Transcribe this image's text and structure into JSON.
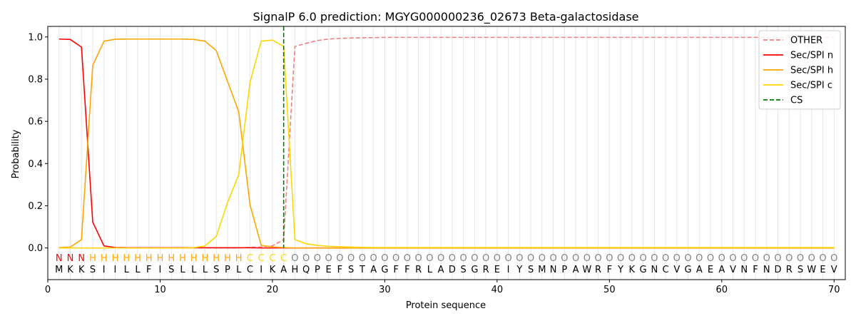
{
  "chart_data": {
    "type": "line",
    "title": "SignalP 6.0 prediction: MGYG000000236_02673 Beta-galactosidase",
    "xlabel": "Protein sequence",
    "ylabel": "Probability",
    "xlim": [
      0,
      71
    ],
    "ylim": [
      -0.15,
      1.05
    ],
    "xticks": [
      0,
      10,
      20,
      30,
      40,
      50,
      60,
      70
    ],
    "yticks": [
      0.0,
      0.2,
      0.4,
      0.6,
      0.8,
      1.0
    ],
    "ytick_labels": [
      "0.0",
      "0.2",
      "0.4",
      "0.6",
      "0.8",
      "1.0"
    ],
    "sequence": "MKKSIILLFISLLLSPLCIKAHQPEFSTAGFFRLADSGREIYSMNPAWRFYKGNCVGAEAVNFNDRSWEV",
    "labels": "NNNHHHHHHHHHHHHHHCCCCOOOOOOOOOOOOOOOOOOOOOOOOOOOOOOOOOOOOOOOOOOOOOOOOO",
    "label_colors": {
      "N": "#ff0000",
      "H": "#ffa500",
      "C": "#ffd700",
      "O": "#808080"
    },
    "legend_position": "top-right",
    "grid": "vertical",
    "series": [
      {
        "name": "OTHER",
        "color": "#f08080",
        "dash": "dashed",
        "values": [
          0.0,
          0.0,
          0.0,
          0.0,
          0.0,
          0.0,
          0.0,
          0.0,
          0.0,
          0.0,
          0.0,
          0.0,
          0.0,
          0.0,
          0.0,
          0.0,
          0.0,
          0.003,
          0.005,
          0.01,
          0.04,
          0.955,
          0.97,
          0.983,
          0.99,
          0.993,
          0.995,
          0.996,
          0.997,
          0.998,
          0.998,
          0.998,
          0.998,
          0.998,
          0.998,
          0.998,
          0.998,
          0.998,
          0.998,
          0.998,
          0.998,
          0.998,
          0.998,
          0.998,
          0.998,
          0.998,
          0.998,
          0.998,
          0.998,
          0.998,
          0.998,
          0.998,
          0.998,
          0.998,
          0.998,
          0.998,
          0.998,
          0.998,
          0.998,
          0.998,
          0.998,
          0.998,
          0.998,
          0.998,
          0.998,
          0.998,
          0.998,
          0.998,
          0.998,
          0.998
        ]
      },
      {
        "name": "Sec/SPI n",
        "color": "#ff0000",
        "dash": "solid",
        "values": [
          0.99,
          0.988,
          0.952,
          0.123,
          0.01,
          0.002,
          0.001,
          0.001,
          0.001,
          0.001,
          0.001,
          0.001,
          0.001,
          0.001,
          0.001,
          0.001,
          0.001,
          0.001,
          0.0,
          0.0,
          0.0,
          0.0,
          0.0,
          0.0,
          0.0,
          0.0,
          0.0,
          0.0,
          0.0,
          0.0,
          0.0,
          0.0,
          0.0,
          0.0,
          0.0,
          0.0,
          0.0,
          0.0,
          0.0,
          0.0,
          0.0,
          0.0,
          0.0,
          0.0,
          0.0,
          0.0,
          0.0,
          0.0,
          0.0,
          0.0,
          0.0,
          0.0,
          0.0,
          0.0,
          0.0,
          0.0,
          0.0,
          0.0,
          0.0,
          0.0,
          0.0,
          0.0,
          0.0,
          0.0,
          0.0,
          0.0,
          0.0,
          0.0,
          0.0,
          0.0
        ]
      },
      {
        "name": "Sec/SPI h",
        "color": "#ffa500",
        "dash": "solid",
        "values": [
          0.002,
          0.004,
          0.04,
          0.865,
          0.98,
          0.989,
          0.99,
          0.99,
          0.99,
          0.99,
          0.99,
          0.99,
          0.988,
          0.98,
          0.935,
          0.79,
          0.645,
          0.205,
          0.012,
          0.005,
          0.002,
          0.0,
          0.0,
          0.0,
          0.0,
          0.0,
          0.0,
          0.0,
          0.0,
          0.0,
          0.0,
          0.0,
          0.0,
          0.0,
          0.0,
          0.0,
          0.0,
          0.0,
          0.0,
          0.0,
          0.0,
          0.0,
          0.0,
          0.0,
          0.0,
          0.0,
          0.0,
          0.0,
          0.0,
          0.0,
          0.0,
          0.0,
          0.0,
          0.0,
          0.0,
          0.0,
          0.0,
          0.0,
          0.0,
          0.0,
          0.0,
          0.0,
          0.0,
          0.0,
          0.0,
          0.0,
          0.0,
          0.0,
          0.0,
          0.0
        ]
      },
      {
        "name": "Sec/SPI c",
        "color": "#ffd700",
        "dash": "solid",
        "values": [
          0.0,
          0.0,
          0.0,
          0.0,
          0.0,
          0.0,
          0.0,
          0.0,
          0.0,
          0.0,
          0.0,
          0.0,
          0.001,
          0.01,
          0.055,
          0.215,
          0.348,
          0.785,
          0.98,
          0.985,
          0.955,
          0.04,
          0.02,
          0.012,
          0.008,
          0.006,
          0.004,
          0.003,
          0.002,
          0.002,
          0.002,
          0.002,
          0.002,
          0.002,
          0.002,
          0.002,
          0.002,
          0.002,
          0.002,
          0.002,
          0.002,
          0.002,
          0.002,
          0.002,
          0.002,
          0.002,
          0.002,
          0.002,
          0.002,
          0.002,
          0.002,
          0.002,
          0.002,
          0.002,
          0.002,
          0.002,
          0.002,
          0.002,
          0.002,
          0.002,
          0.002,
          0.002,
          0.002,
          0.002,
          0.002,
          0.002,
          0.002,
          0.002,
          0.002,
          0.002
        ]
      }
    ],
    "cs": {
      "name": "CS",
      "x": 21,
      "color": "#008000",
      "dash": "dashed"
    }
  }
}
